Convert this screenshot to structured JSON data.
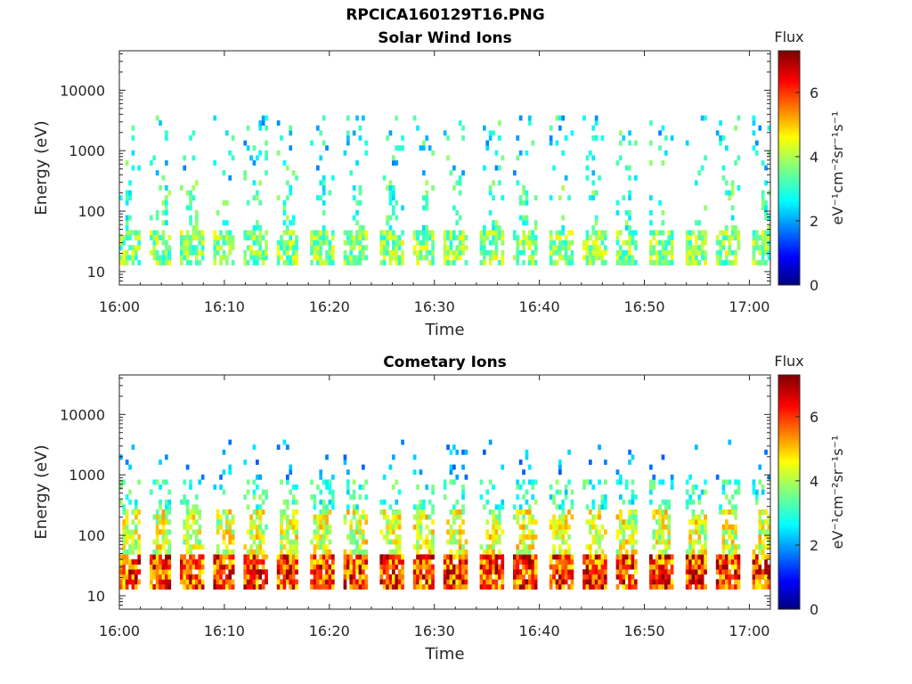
{
  "figure": {
    "title": "RPCICA160129T16.PNG"
  },
  "colors": {
    "colormap": "jet",
    "axis": "#262626",
    "background": "#ffffff"
  },
  "chart_data": [
    {
      "type": "heatmap",
      "title": "Solar Wind Ions",
      "xlabel": "Time",
      "ylabel": "Energy (eV)",
      "x_ticks": [
        "16:00",
        "16:10",
        "16:20",
        "16:30",
        "16:40",
        "16:50",
        "17:00"
      ],
      "x_range": [
        "16:00",
        "17:02"
      ],
      "y_scale": "log",
      "y_ticks": [
        "10",
        "100",
        "1000",
        "10000"
      ],
      "ylim": [
        6,
        45000
      ],
      "colorbar": {
        "title": "Flux",
        "label": "eV⁻¹cm⁻²sr⁻¹s⁻¹",
        "ticks": [
          "0",
          "2",
          "4",
          "6"
        ],
        "range": [
          0,
          7.3
        ]
      },
      "description_of_values": "sparse flux 2-4 mostly; bands near 25 eV and 700-2000 eV, vertical streaks at each ~3-min scan"
    },
    {
      "type": "heatmap",
      "title": "Cometary Ions",
      "xlabel": "Time",
      "ylabel": "Energy (eV)",
      "x_ticks": [
        "16:00",
        "16:10",
        "16:20",
        "16:30",
        "16:40",
        "16:50",
        "17:00"
      ],
      "x_range": [
        "16:00",
        "17:02"
      ],
      "y_scale": "log",
      "y_ticks": [
        "10",
        "100",
        "1000",
        "10000"
      ],
      "ylim": [
        6,
        45000
      ],
      "colorbar": {
        "title": "Flux",
        "label": "eV⁻¹cm⁻²sr⁻¹s⁻¹",
        "ticks": [
          "0",
          "2",
          "4",
          "6"
        ],
        "range": [
          0,
          7.3
        ]
      },
      "description_of_values": "strong flux 5-7 at 15-45 eV in every scan, decreasing with energy up to ~3000 eV"
    }
  ]
}
